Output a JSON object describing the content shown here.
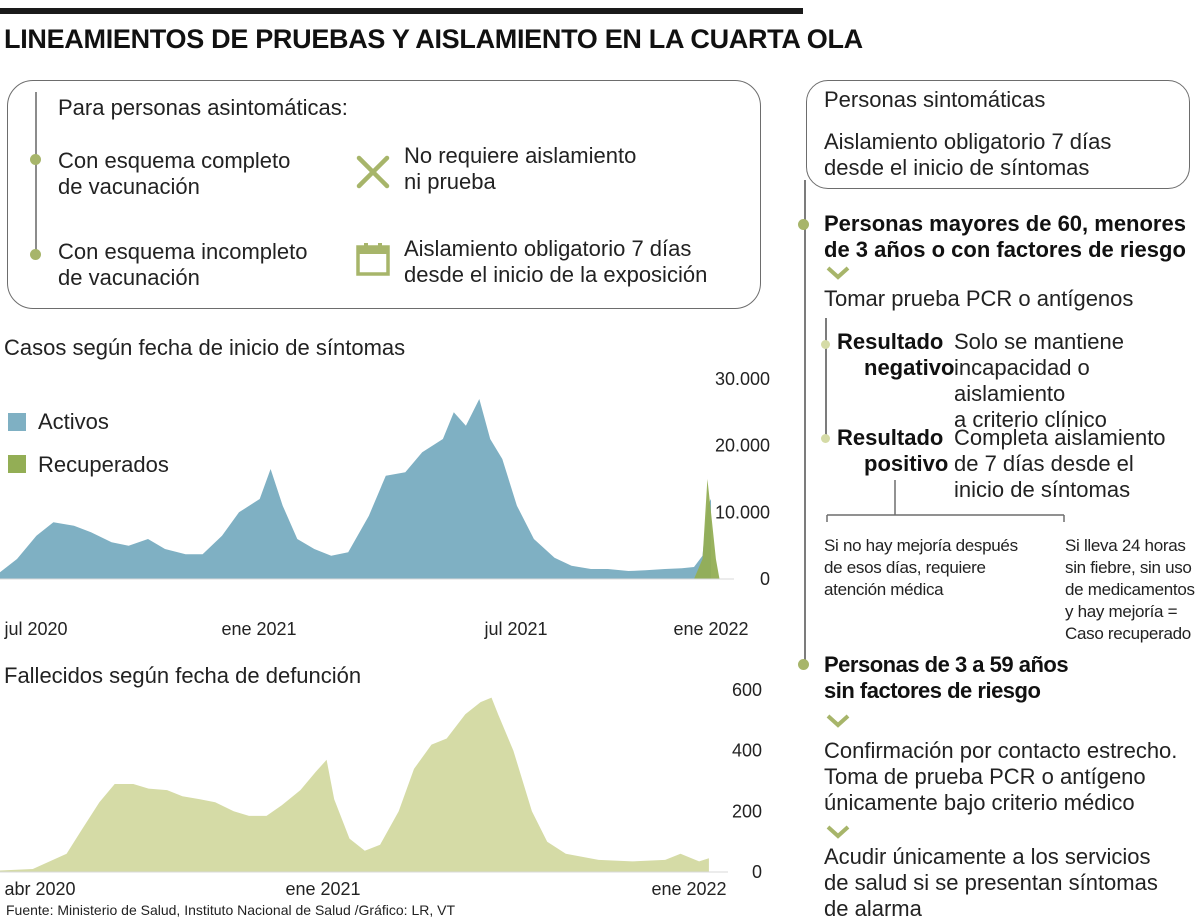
{
  "title": "LINEAMIENTOS DE PRUEBAS Y AISLAMIENTO EN LA CUARTA OLA",
  "asymptomatic": {
    "heading": "Para personas asintomáticas:",
    "complete_line1": "Con esquema completo",
    "complete_line2": "de vacunación",
    "complete_result_line1": "No requiere aislamiento",
    "complete_result_line2": "ni prueba",
    "incomplete_line1": "Con esquema incompleto",
    "incomplete_line2": "de vacunación",
    "incomplete_result_line1": "Aislamiento obligatorio 7 días",
    "incomplete_result_line2": "desde el inicio de la exposición"
  },
  "symptomatic": {
    "heading": "Personas sintomáticas",
    "isolation_line1": "Aislamiento obligatorio 7 días",
    "isolation_line2": "desde el inicio de síntomas",
    "risk_line1": "Personas mayores de 60, menores",
    "risk_line2": "de 3 años o con factores de riesgo",
    "test": "Tomar prueba PCR o antígenos",
    "neg_label_line1": "Resultado",
    "neg_label_line2": "negativo",
    "neg_text_line1": "Solo se mantiene",
    "neg_text_line2": "incapacidad o aislamiento",
    "neg_text_line3": "a criterio clínico",
    "pos_label_line1": "Resultado",
    "pos_label_line2": "positivo",
    "pos_text_line1": "Completa aislamiento",
    "pos_text_line2": "de 7 días desde el",
    "pos_text_line3": "inicio de síntomas",
    "no_improve_line1": "Si no hay mejoría después",
    "no_improve_line2": "de esos días, requiere",
    "no_improve_line3": "atención médica",
    "recovered_line1": "Si lleva 24 horas",
    "recovered_line2": "sin fiebre, sin uso",
    "recovered_line3": "de medicamentos",
    "recovered_line4": "y hay mejoría =",
    "recovered_line5": "Caso recuperado",
    "young_line1": "Personas de 3 a 59 años",
    "young_line2": "sin factores de riesgo",
    "contact_line1": "Confirmación por contacto estrecho.",
    "contact_line2": "Toma de prueba PCR o antígeno",
    "contact_line3": "únicamente bajo criterio médico",
    "alarm_line1": "Acudir únicamente a los servicios",
    "alarm_line2": "de salud si se presentan síntomas",
    "alarm_line3": "de alarma"
  },
  "source": "Fuente: Ministerio de Salud, Instituto Nacional de Salud /Gráfico: LR, VT",
  "colors": {
    "activos": "#7fb0c3",
    "recuperados": "#93ae55",
    "fallecidos": "#d5dba6",
    "accent_green": "#a7b56a"
  },
  "icons": {
    "no_isolation": "x-mark-icon",
    "isolation": "calendar-icon",
    "branch": "chevron-down-icon"
  },
  "chart_data": [
    {
      "type": "area",
      "title": "Casos según fecha de inicio de síntomas",
      "x_tick_labels": [
        "jul 2020",
        "ene 2021",
        "jul 2021",
        "ene 2022"
      ],
      "y_tick_labels": [
        "30.000",
        "20.000",
        "10.000",
        "0"
      ],
      "ylim": [
        0,
        30000
      ],
      "legend_placement": "left",
      "series": [
        {
          "name": "Activos",
          "x": [
            "2020-06-01",
            "2020-06-15",
            "2020-07-01",
            "2020-07-15",
            "2020-08-01",
            "2020-08-15",
            "2020-09-01",
            "2020-09-15",
            "2020-10-01",
            "2020-10-15",
            "2020-11-01",
            "2020-11-15",
            "2020-12-01",
            "2020-12-15",
            "2021-01-01",
            "2021-01-10",
            "2021-01-20",
            "2021-02-01",
            "2021-02-15",
            "2021-03-01",
            "2021-03-15",
            "2021-04-01",
            "2021-04-15",
            "2021-05-01",
            "2021-05-15",
            "2021-06-01",
            "2021-06-10",
            "2021-06-20",
            "2021-07-01",
            "2021-07-10",
            "2021-07-20",
            "2021-08-01",
            "2021-08-15",
            "2021-09-01",
            "2021-09-15",
            "2021-10-01",
            "2021-10-15",
            "2021-11-01",
            "2021-11-15",
            "2021-12-01",
            "2021-12-15",
            "2021-12-25",
            "2022-01-01",
            "2022-01-05",
            "2022-01-08"
          ],
          "values": [
            1000,
            3000,
            6500,
            8500,
            8000,
            7000,
            5500,
            5000,
            6000,
            4500,
            3700,
            3700,
            6500,
            10000,
            12000,
            16500,
            11000,
            6000,
            4500,
            3500,
            4000,
            9500,
            15500,
            16000,
            19000,
            21000,
            25000,
            23000,
            27000,
            21000,
            18000,
            11000,
            6000,
            3200,
            2000,
            1500,
            1500,
            1200,
            1300,
            1500,
            1600,
            1800,
            3500,
            11000,
            12000
          ]
        },
        {
          "name": "Recuperados",
          "x": [
            "2021-12-25",
            "2022-01-01",
            "2022-01-05",
            "2022-01-08",
            "2022-01-12",
            "2022-01-15"
          ],
          "values": [
            0,
            3000,
            15000,
            10000,
            3000,
            0
          ]
        }
      ]
    },
    {
      "type": "area",
      "title": "Fallecidos según fecha de defunción",
      "x_tick_labels": [
        "abr 2020",
        "ene 2021",
        "ene 2022"
      ],
      "y_tick_labels": [
        "600",
        "400",
        "200",
        "0"
      ],
      "ylim": [
        0,
        600
      ],
      "series": [
        {
          "name": "Fallecidos",
          "x": [
            "2020-04-01",
            "2020-05-01",
            "2020-06-01",
            "2020-06-15",
            "2020-07-01",
            "2020-07-15",
            "2020-08-01",
            "2020-08-15",
            "2020-09-01",
            "2020-09-15",
            "2020-10-01",
            "2020-10-15",
            "2020-11-01",
            "2020-11-15",
            "2020-12-01",
            "2020-12-15",
            "2021-01-01",
            "2021-01-15",
            "2021-01-25",
            "2021-02-01",
            "2021-02-15",
            "2021-03-01",
            "2021-03-15",
            "2021-04-01",
            "2021-04-15",
            "2021-05-01",
            "2021-05-15",
            "2021-06-01",
            "2021-06-15",
            "2021-06-25",
            "2021-07-01",
            "2021-07-15",
            "2021-08-01",
            "2021-08-15",
            "2021-09-01",
            "2021-10-01",
            "2021-11-01",
            "2021-12-01",
            "2021-12-15",
            "2022-01-01",
            "2022-01-10"
          ],
          "values": [
            5,
            10,
            60,
            140,
            230,
            290,
            290,
            275,
            270,
            250,
            240,
            230,
            200,
            185,
            185,
            220,
            270,
            330,
            370,
            240,
            110,
            70,
            90,
            200,
            340,
            420,
            440,
            520,
            560,
            575,
            520,
            400,
            200,
            100,
            60,
            40,
            35,
            40,
            60,
            35,
            45
          ]
        }
      ]
    }
  ]
}
